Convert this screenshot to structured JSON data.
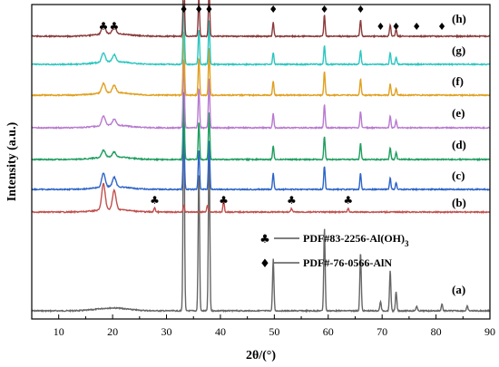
{
  "chart_data": {
    "type": "line",
    "xlabel": "2θ/(°)",
    "ylabel": "Intensity (a.u.)",
    "xlim": [
      5,
      90
    ],
    "x_ticks": [
      10,
      20,
      30,
      40,
      50,
      60,
      70,
      80,
      90
    ],
    "y_ticks_shown": false,
    "grid": false,
    "marker_types": {
      "club": {
        "symbol": "♣",
        "legend": "PDF#83-2256-Al(OH)3"
      },
      "diamond": {
        "symbol": "♦",
        "legend": "PDF#-76-0566-AlN"
      }
    },
    "legend": [
      {
        "symbol": "♣",
        "text": "PDF#83-2256-Al(OH)3"
      },
      {
        "symbol": "♦",
        "text": "PDF#-76-0566-AlN"
      }
    ],
    "series": [
      {
        "name": "(a)",
        "color": "#666666",
        "baseline": 0.0,
        "peaks": [
          [
            33.2,
            0.97
          ],
          [
            36.0,
            0.6
          ],
          [
            37.9,
            0.72
          ],
          [
            49.8,
            0.22
          ],
          [
            59.3,
            0.35
          ],
          [
            66.0,
            0.25
          ],
          [
            69.7,
            0.04
          ],
          [
            71.5,
            0.17
          ],
          [
            72.6,
            0.08
          ],
          [
            76.4,
            0.02
          ],
          [
            81.1,
            0.03
          ],
          [
            85.8,
            0.02
          ]
        ]
      },
      {
        "name": "(b)",
        "color": "#c0504d",
        "baseline": 0.0,
        "peaks": [
          [
            18.3,
            0.11
          ],
          [
            20.3,
            0.08
          ],
          [
            27.8,
            0.02
          ],
          [
            33.2,
            0.03
          ],
          [
            37.6,
            0.03
          ],
          [
            40.6,
            0.05
          ],
          [
            53.2,
            0.015
          ],
          [
            63.7,
            0.015
          ]
        ]
      },
      {
        "name": "(c)",
        "color": "#2e64c8",
        "baseline": 0.0,
        "peaks": [
          [
            18.3,
            0.06
          ],
          [
            20.3,
            0.04
          ],
          [
            33.2,
            0.28
          ],
          [
            36.0,
            0.17
          ],
          [
            37.9,
            0.21
          ],
          [
            49.8,
            0.07
          ],
          [
            59.3,
            0.1
          ],
          [
            66.0,
            0.07
          ],
          [
            71.5,
            0.05
          ],
          [
            72.6,
            0.03
          ]
        ]
      },
      {
        "name": "(d)",
        "color": "#1e9e5e",
        "baseline": 0.0,
        "peaks": [
          [
            18.3,
            0.03
          ],
          [
            20.3,
            0.02
          ],
          [
            33.2,
            0.28
          ],
          [
            36.0,
            0.16
          ],
          [
            37.9,
            0.2
          ],
          [
            49.8,
            0.06
          ],
          [
            59.3,
            0.1
          ],
          [
            66.0,
            0.07
          ],
          [
            71.5,
            0.05
          ],
          [
            72.6,
            0.03
          ]
        ]
      },
      {
        "name": "(e)",
        "color": "#b87ad0",
        "baseline": 0.0,
        "peaks": [
          [
            18.3,
            0.04
          ],
          [
            20.3,
            0.025
          ],
          [
            33.2,
            0.3
          ],
          [
            36.0,
            0.17
          ],
          [
            37.9,
            0.21
          ],
          [
            49.8,
            0.06
          ],
          [
            59.3,
            0.1
          ],
          [
            66.0,
            0.07
          ],
          [
            71.5,
            0.05
          ],
          [
            72.6,
            0.03
          ]
        ]
      },
      {
        "name": "(f)",
        "color": "#e0a020",
        "baseline": 0.0,
        "peaks": [
          [
            18.3,
            0.04
          ],
          [
            20.3,
            0.03
          ],
          [
            33.2,
            0.28
          ],
          [
            36.0,
            0.16
          ],
          [
            37.9,
            0.2
          ],
          [
            49.8,
            0.06
          ],
          [
            59.3,
            0.1
          ],
          [
            66.0,
            0.07
          ],
          [
            71.5,
            0.05
          ],
          [
            72.6,
            0.03
          ]
        ]
      },
      {
        "name": "(g)",
        "color": "#2cc6c0",
        "baseline": 0.0,
        "peaks": [
          [
            18.3,
            0.04
          ],
          [
            20.3,
            0.03
          ],
          [
            33.2,
            0.28
          ],
          [
            36.0,
            0.15
          ],
          [
            37.9,
            0.19
          ],
          [
            49.8,
            0.05
          ],
          [
            59.3,
            0.08
          ],
          [
            66.0,
            0.06
          ],
          [
            71.5,
            0.05
          ],
          [
            72.6,
            0.03
          ]
        ]
      },
      {
        "name": "(h)",
        "color": "#8b3a3a",
        "baseline": 0.0,
        "peaks": [
          [
            18.3,
            0.04
          ],
          [
            20.3,
            0.03
          ],
          [
            33.2,
            0.3
          ],
          [
            36.0,
            0.16
          ],
          [
            37.9,
            0.2
          ],
          [
            49.8,
            0.06
          ],
          [
            59.3,
            0.09
          ],
          [
            66.0,
            0.07
          ],
          [
            71.5,
            0.05
          ],
          [
            72.6,
            0.03
          ]
        ]
      }
    ],
    "annotations": [
      {
        "series": "(b)",
        "symbol": "♣",
        "x": [
          27.8,
          40.6,
          53.2,
          63.7
        ]
      },
      {
        "series": "(h)",
        "symbol": "♣",
        "x": [
          18.3,
          20.3
        ]
      },
      {
        "series": "(h)",
        "symbol": "♦",
        "x": [
          33.2,
          36.0,
          37.9,
          49.8,
          59.3,
          66.0,
          69.7,
          72.6,
          76.4,
          81.1
        ]
      }
    ]
  }
}
